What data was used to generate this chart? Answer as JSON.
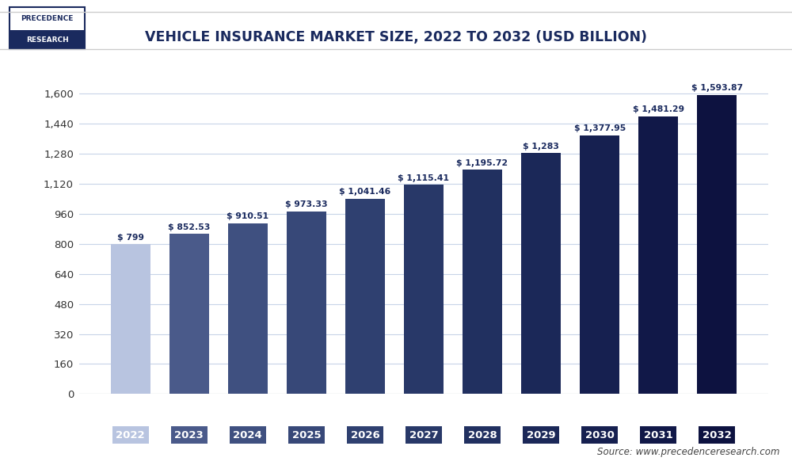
{
  "title": "VEHICLE INSURANCE MARKET SIZE, 2022 TO 2032 (USD BILLION)",
  "years": [
    2022,
    2023,
    2024,
    2025,
    2026,
    2027,
    2028,
    2029,
    2030,
    2031,
    2032
  ],
  "values": [
    799,
    852.53,
    910.51,
    973.33,
    1041.46,
    1115.41,
    1195.72,
    1283,
    1377.95,
    1481.29,
    1593.87
  ],
  "labels": [
    "$ 799",
    "$ 852.53",
    "$ 910.51",
    "$ 973.33",
    "$ 1,041.46",
    "$ 1,115.41",
    "$ 1,195.72",
    "$ 1,283",
    "$ 1,377.95",
    "$ 1,481.29",
    "$ 1,593.87"
  ],
  "bar_colors": [
    "#b8c4e0",
    "#4a5a8a",
    "#3f5080",
    "#374878",
    "#2f4070",
    "#283868",
    "#213060",
    "#1b2858",
    "#162050",
    "#111848",
    "#0d1240"
  ],
  "ylim": [
    0,
    1700
  ],
  "yticks": [
    0,
    160,
    320,
    480,
    640,
    800,
    960,
    1120,
    1280,
    1440,
    1600
  ],
  "background_color": "#ffffff",
  "plot_bg_color": "#ffffff",
  "grid_color": "#c8d4e8",
  "source_text": "Source: www.precedenceresearch.com",
  "title_color": "#1a2a5e",
  "bar_label_color": "#1a2a5e",
  "ytick_color": "#333333"
}
